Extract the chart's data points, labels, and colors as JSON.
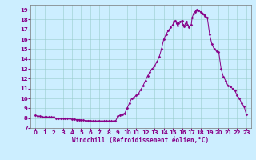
{
  "xlabel": "Windchill (Refroidissement éolien,°C)",
  "background_color": "#cceeff",
  "line_color": "#880088",
  "marker_color": "#880088",
  "grid_color": "#99cccc",
  "xlim": [
    -0.5,
    23.5
  ],
  "ylim": [
    7,
    19.5
  ],
  "yticks": [
    7,
    8,
    9,
    10,
    11,
    12,
    13,
    14,
    15,
    16,
    17,
    18,
    19
  ],
  "xticks": [
    0,
    1,
    2,
    3,
    4,
    5,
    6,
    7,
    8,
    9,
    10,
    11,
    12,
    13,
    14,
    15,
    16,
    17,
    18,
    19,
    20,
    21,
    22,
    23
  ],
  "data_x": [
    0.0,
    0.25,
    0.5,
    0.75,
    1.0,
    1.25,
    1.5,
    1.75,
    2.0,
    2.25,
    2.5,
    2.75,
    3.0,
    3.25,
    3.5,
    3.75,
    4.0,
    4.25,
    4.5,
    4.75,
    5.0,
    5.25,
    5.5,
    5.75,
    6.0,
    6.25,
    6.5,
    6.75,
    7.0,
    7.25,
    7.5,
    7.75,
    8.0,
    8.25,
    8.5,
    8.75,
    9.0,
    9.25,
    9.5,
    9.75,
    10.0,
    10.25,
    10.5,
    10.75,
    11.0,
    11.25,
    11.5,
    11.75,
    12.0,
    12.25,
    12.5,
    12.75,
    13.0,
    13.25,
    13.5,
    13.75,
    14.0,
    14.25,
    14.5,
    14.75,
    15.0,
    15.1,
    15.25,
    15.4,
    15.5,
    15.6,
    15.75,
    16.0,
    16.1,
    16.25,
    16.4,
    16.5,
    16.6,
    16.75,
    17.0,
    17.1,
    17.25,
    17.4,
    17.5,
    17.6,
    17.75,
    18.0,
    18.1,
    18.25,
    18.4,
    18.5,
    18.75,
    19.0,
    19.25,
    19.5,
    19.75,
    20.0,
    20.25,
    20.5,
    20.75,
    21.0,
    21.25,
    21.5,
    21.75,
    22.0,
    22.25,
    22.5,
    22.75,
    23.0
  ],
  "data_y": [
    8.3,
    8.2,
    8.2,
    8.1,
    8.1,
    8.1,
    8.1,
    8.1,
    8.1,
    8.0,
    8.0,
    8.0,
    8.0,
    8.0,
    8.0,
    7.95,
    7.9,
    7.9,
    7.85,
    7.85,
    7.8,
    7.8,
    7.75,
    7.75,
    7.75,
    7.7,
    7.7,
    7.7,
    7.7,
    7.7,
    7.7,
    7.7,
    7.7,
    7.7,
    7.7,
    7.7,
    8.2,
    8.3,
    8.4,
    8.5,
    9.0,
    9.5,
    10.0,
    10.1,
    10.3,
    10.5,
    10.9,
    11.3,
    11.8,
    12.3,
    12.7,
    13.0,
    13.3,
    13.7,
    14.2,
    15.0,
    16.0,
    16.5,
    16.9,
    17.2,
    17.5,
    17.8,
    17.9,
    17.6,
    17.4,
    17.6,
    17.8,
    17.9,
    17.5,
    17.3,
    17.6,
    17.8,
    17.5,
    17.2,
    17.5,
    18.2,
    18.6,
    18.8,
    18.9,
    19.0,
    18.9,
    18.8,
    18.7,
    18.6,
    18.5,
    18.4,
    18.2,
    16.5,
    15.5,
    15.0,
    14.8,
    14.7,
    13.0,
    12.2,
    11.8,
    11.3,
    11.2,
    11.0,
    10.8,
    10.3,
    10.0,
    9.5,
    9.2,
    8.4
  ]
}
